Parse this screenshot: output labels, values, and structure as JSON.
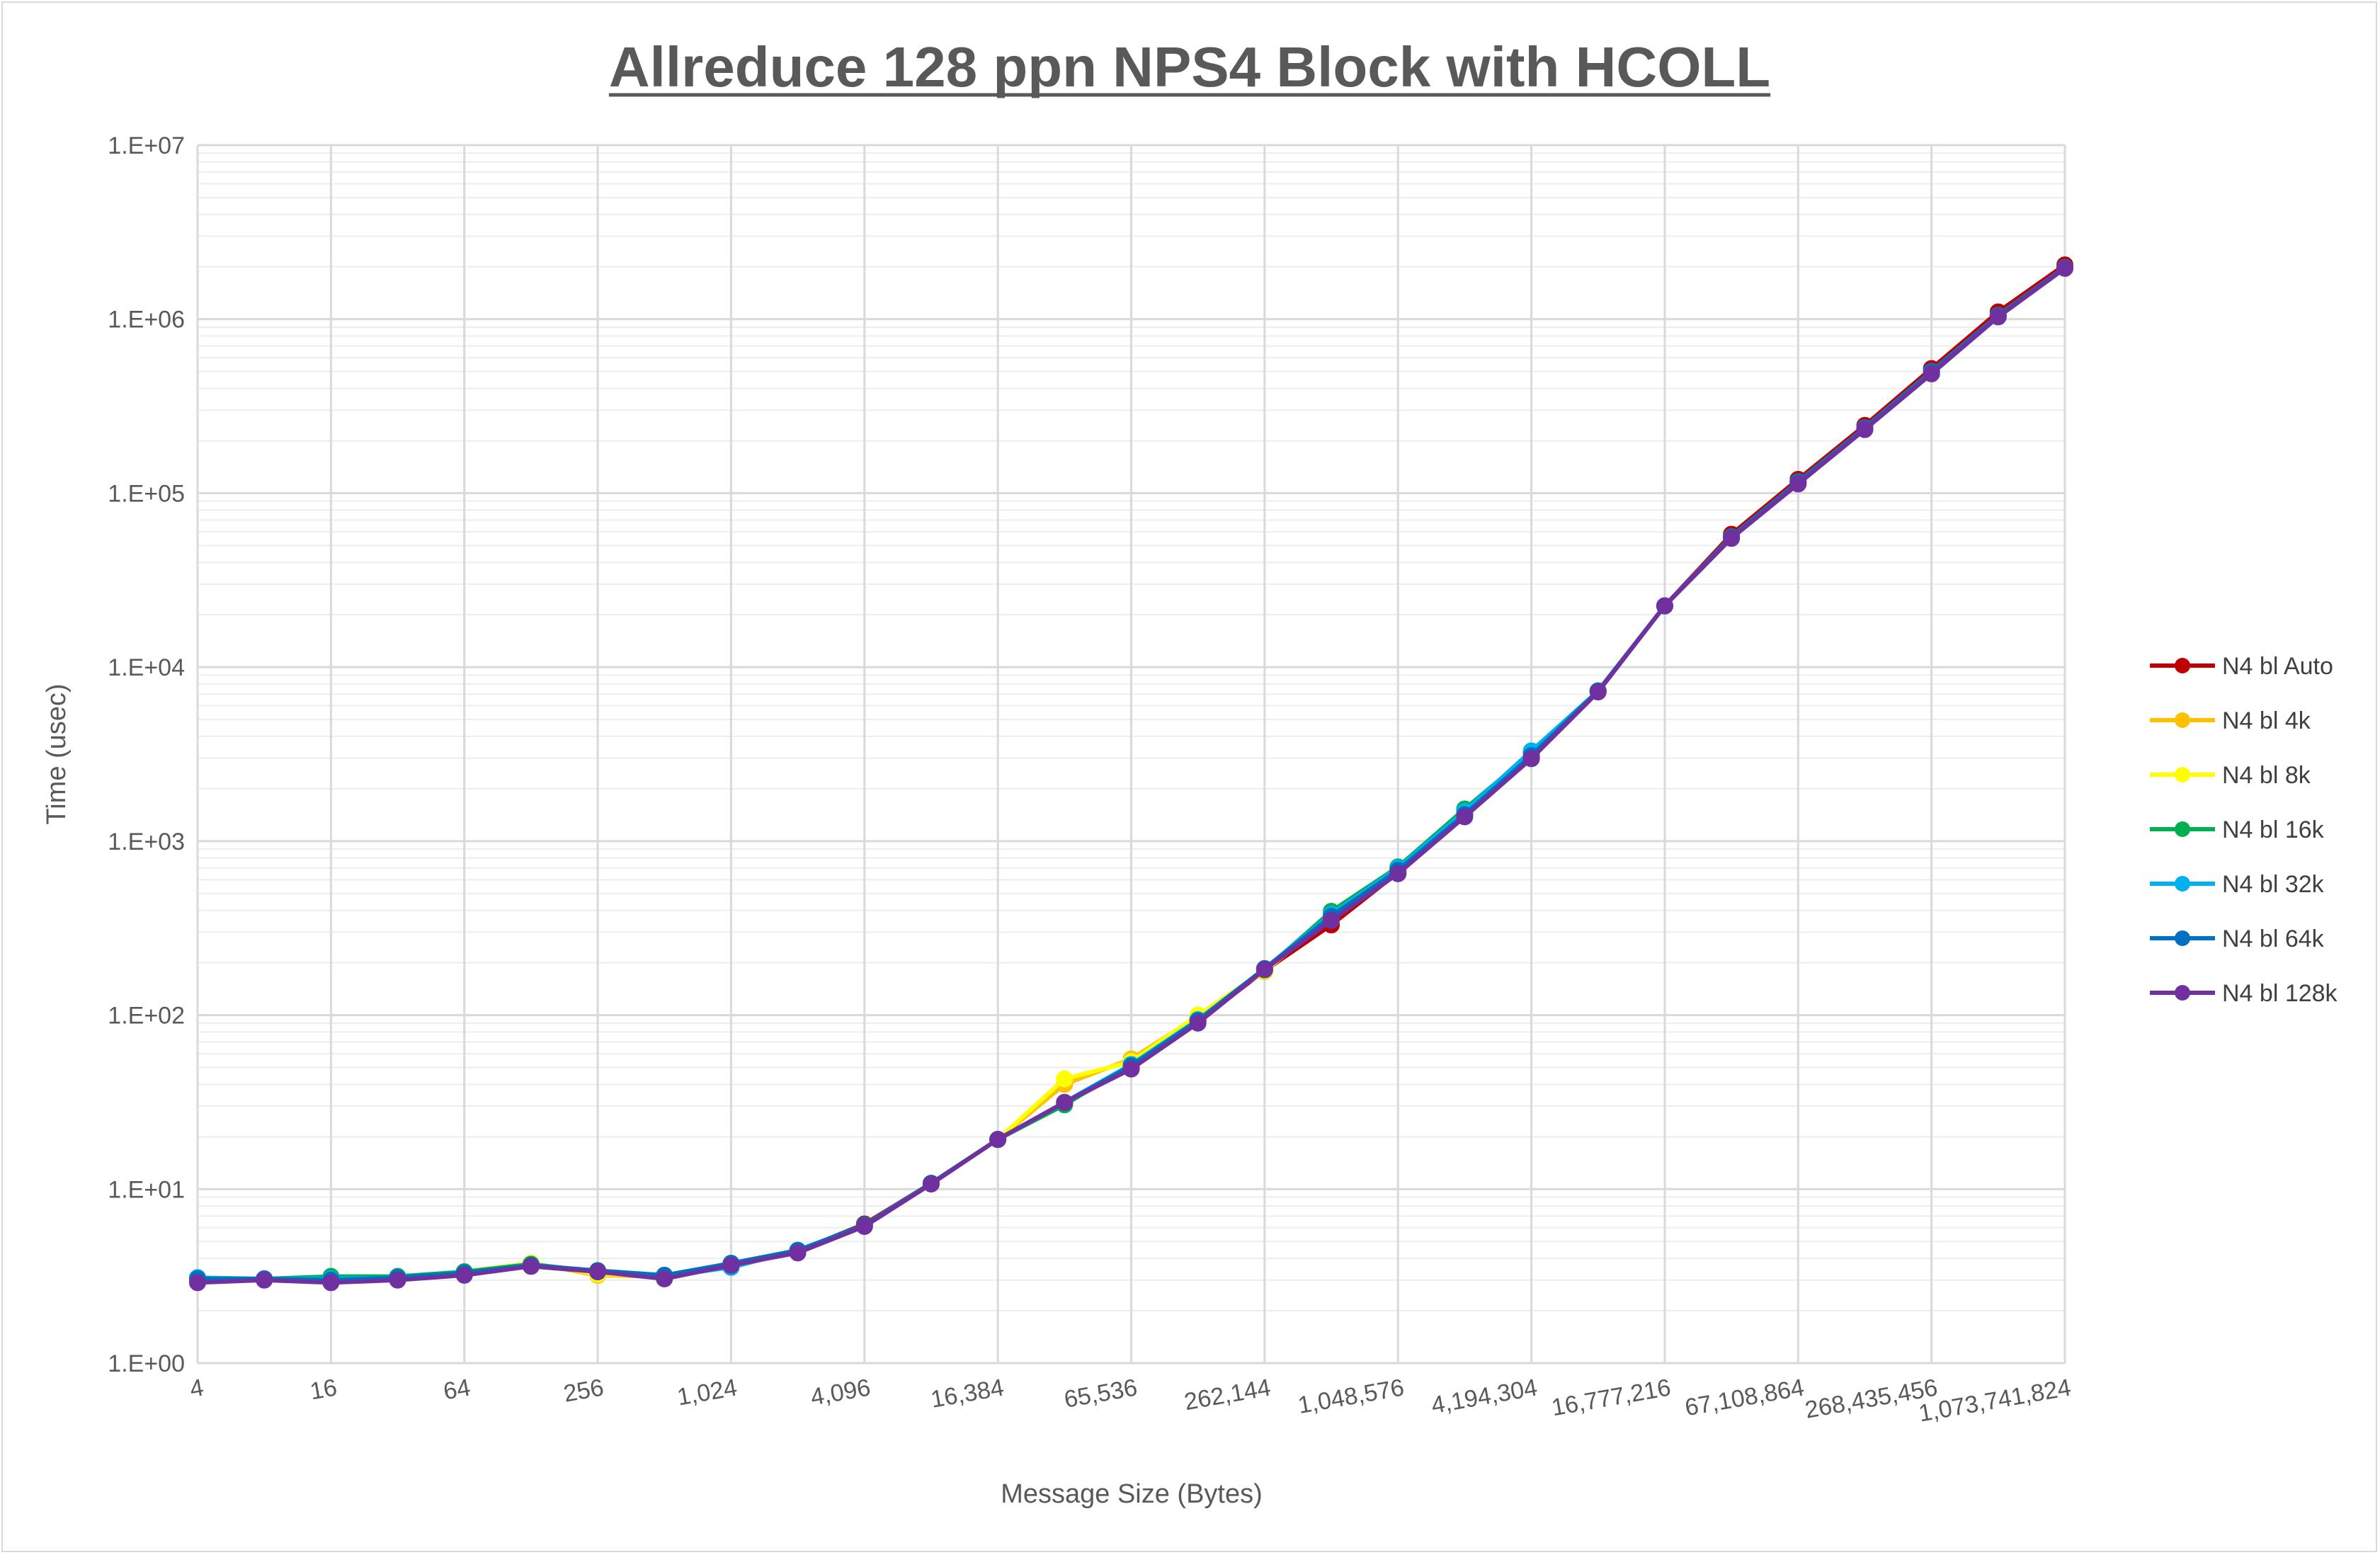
{
  "chart_data": {
    "type": "line",
    "title": "Allreduce 128 ppn NPS4 Block with HCOLL",
    "xlabel": "Message Size (Bytes)",
    "ylabel": "Time (usec)",
    "xscale": "log2",
    "yscale": "log10",
    "ylim": [
      1,
      10000000
    ],
    "grid": true,
    "legend_position": "right",
    "x": [
      4,
      8,
      16,
      32,
      64,
      128,
      256,
      512,
      1024,
      2048,
      4096,
      8192,
      16384,
      32768,
      65536,
      131072,
      262144,
      524288,
      1048576,
      2097152,
      4194304,
      8388608,
      16777216,
      33554432,
      67108864,
      134217728,
      268435456,
      536870912,
      1073741824
    ],
    "x_tick_labels": [
      "4",
      "16",
      "64",
      "256",
      "1,024",
      "4,096",
      "16,384",
      "65,536",
      "262,144",
      "1,048,576",
      "4,194,304",
      "16,777,216",
      "67,108,864",
      "268,435,456",
      "1,073,741,824"
    ],
    "y_tick_labels": [
      "1.E+00",
      "1.E+01",
      "1.E+02",
      "1.E+03",
      "1.E+04",
      "1.E+05",
      "1.E+06",
      "1.E+07"
    ],
    "series": [
      {
        "name": "N4 bl Auto",
        "color": "#c00000",
        "values": [
          3.0,
          3.05,
          3.0,
          3.05,
          3.3,
          3.6,
          3.35,
          3.1,
          3.6,
          4.4,
          6.3,
          10.8,
          19.3,
          31,
          50,
          92,
          180,
          330,
          660,
          1420,
          3050,
          7300,
          22500,
          58000,
          120000,
          245000,
          520000,
          1100000,
          2050000
        ]
      },
      {
        "name": "N4 bl 4k",
        "color": "#ffc000",
        "values": [
          3.0,
          3.05,
          3.05,
          3.1,
          3.35,
          3.75,
          3.2,
          3.15,
          3.65,
          4.4,
          6.2,
          10.8,
          19.3,
          40,
          56,
          98,
          178,
          370,
          690,
          1450,
          3100,
          7300,
          22500,
          56000,
          116000,
          237000,
          500000,
          1050000,
          1980000
        ]
      },
      {
        "name": "N4 bl 8k",
        "color": "#ffff00",
        "values": [
          3.0,
          3.05,
          3.05,
          3.1,
          3.35,
          3.75,
          3.25,
          3.15,
          3.65,
          4.4,
          6.2,
          10.8,
          19.3,
          43,
          54,
          100,
          180,
          375,
          700,
          1460,
          3120,
          7300,
          22500,
          56000,
          116000,
          237000,
          500000,
          1050000,
          1980000
        ]
      },
      {
        "name": "N4 bl 16k",
        "color": "#00b050",
        "values": [
          3.0,
          3.05,
          3.15,
          3.15,
          3.35,
          3.7,
          3.35,
          3.15,
          3.7,
          4.45,
          6.2,
          10.8,
          19.3,
          30.5,
          52,
          94,
          182,
          395,
          710,
          1530,
          3200,
          7300,
          22500,
          56000,
          116000,
          237000,
          500000,
          1050000,
          1980000
        ]
      },
      {
        "name": "N4 bl 32k",
        "color": "#00b0f0",
        "values": [
          3.1,
          3.05,
          3.05,
          3.1,
          3.3,
          3.65,
          3.35,
          3.15,
          3.55,
          4.45,
          6.2,
          10.8,
          19.3,
          31.5,
          52,
          94,
          185,
          380,
          700,
          1480,
          3300,
          7300,
          22500,
          56000,
          116000,
          237000,
          500000,
          1050000,
          1980000
        ]
      },
      {
        "name": "N4 bl 64k",
        "color": "#0070c0",
        "values": [
          3.05,
          3.05,
          3.0,
          3.1,
          3.3,
          3.65,
          3.4,
          3.2,
          3.75,
          4.45,
          6.2,
          10.8,
          19.3,
          31.5,
          51,
          93,
          185,
          370,
          680,
          1420,
          3100,
          7300,
          22500,
          56000,
          116000,
          237000,
          500000,
          1050000,
          1980000
        ]
      },
      {
        "name": "N4 bl 128k",
        "color": "#7030a0",
        "values": [
          2.9,
          3.0,
          2.9,
          3.0,
          3.2,
          3.6,
          3.35,
          3.05,
          3.65,
          4.3,
          6.1,
          10.7,
          19.3,
          31.5,
          49,
          90,
          183,
          350,
          650,
          1380,
          2980,
          7200,
          22500,
          55000,
          113000,
          232000,
          485000,
          1030000,
          1960000
        ]
      }
    ]
  }
}
